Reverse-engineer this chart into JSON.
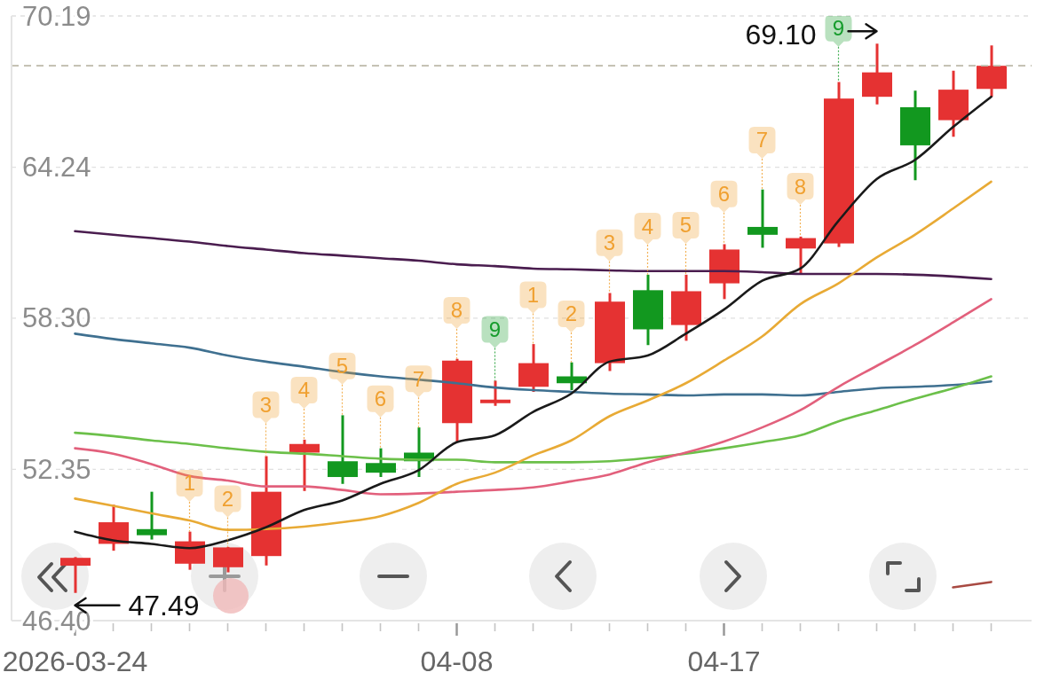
{
  "chart_data": {
    "type": "candlestick",
    "categories": [
      "2026-03-24",
      null,
      null,
      null,
      null,
      null,
      null,
      null,
      null,
      null,
      "04-08",
      null,
      null,
      null,
      null,
      null,
      null,
      "04-17",
      null,
      null,
      null,
      null,
      null,
      null,
      null
    ],
    "ohlc": [
      [
        48.56,
        48.9,
        47.49,
        48.87
      ],
      [
        49.42,
        50.96,
        49.15,
        50.27
      ],
      [
        50.0,
        51.47,
        49.59,
        49.76
      ],
      [
        48.64,
        49.9,
        48.4,
        49.52
      ],
      [
        48.5,
        49.3,
        48.3,
        49.28
      ],
      [
        48.94,
        52.87,
        48.57,
        51.47
      ],
      [
        53.01,
        53.52,
        51.5,
        53.35
      ],
      [
        52.67,
        54.48,
        51.78,
        52.05
      ],
      [
        52.6,
        53.18,
        52.05,
        52.22
      ],
      [
        53.01,
        54.0,
        52.05,
        52.67
      ],
      [
        54.17,
        56.7,
        53.42,
        56.63
      ],
      [
        55.0,
        55.84,
        54.85,
        55.05
      ],
      [
        55.6,
        57.28,
        55.4,
        56.53
      ],
      [
        56.01,
        56.56,
        55.47,
        55.74
      ],
      [
        56.53,
        59.29,
        56.22,
        58.95
      ],
      [
        59.4,
        60.01,
        57.24,
        57.86
      ],
      [
        58.03,
        60.01,
        57.41,
        59.36
      ],
      [
        59.67,
        61.21,
        59.05,
        61.0
      ],
      [
        61.89,
        63.36,
        61.07,
        61.58
      ],
      [
        61.04,
        61.51,
        60.01,
        61.45
      ],
      [
        61.24,
        67.59,
        61.1,
        66.94
      ],
      [
        67.01,
        69.1,
        66.71,
        67.97
      ],
      [
        66.6,
        67.25,
        63.73,
        65.1
      ],
      [
        66.09,
        68.04,
        65.44,
        67.29
      ],
      [
        67.32,
        69.03,
        67.01,
        68.23
      ]
    ],
    "colors": [
      "#e53232",
      "#e53232",
      "#12981f",
      "#e53232",
      "#e53232",
      "#e53232",
      "#e53232",
      "#12981f",
      "#12981f",
      "#12981f",
      "#e53232",
      "#e53232",
      "#e53232",
      "#12981f",
      "#e53232",
      "#12981f",
      "#e53232",
      "#e53232",
      "#12981f",
      "#e53232",
      "#e53232",
      "#e53232",
      "#12981f",
      "#e53232",
      "#e53232"
    ],
    "series": [
      {
        "type": "line",
        "color": "#4a1d4f",
        "values": [
          61.72,
          61.58,
          61.45,
          61.31,
          61.14,
          61.0,
          60.86,
          60.76,
          60.66,
          60.56,
          60.42,
          60.35,
          60.25,
          60.22,
          60.18,
          60.15,
          60.15,
          60.15,
          60.11,
          60.04,
          60.04,
          60.04,
          60.01,
          59.94,
          59.84
        ]
      },
      {
        "type": "line",
        "color": "#3f7090",
        "values": [
          57.69,
          57.48,
          57.31,
          57.14,
          56.83,
          56.59,
          56.39,
          56.18,
          56.01,
          55.88,
          55.74,
          55.57,
          55.47,
          55.4,
          55.33,
          55.3,
          55.26,
          55.3,
          55.3,
          55.26,
          55.4,
          55.54,
          55.6,
          55.67,
          55.81
        ]
      },
      {
        "type": "line",
        "color": "#6cc04a",
        "values": [
          53.79,
          53.66,
          53.49,
          53.35,
          53.18,
          53.04,
          52.97,
          52.87,
          52.77,
          52.73,
          52.73,
          52.63,
          52.63,
          52.63,
          52.67,
          52.8,
          52.97,
          53.18,
          53.42,
          53.69,
          54.24,
          54.68,
          55.13,
          55.54,
          56.01
        ]
      },
      {
        "type": "line",
        "color": "#e2607c",
        "values": [
          53.18,
          52.97,
          52.56,
          52.09,
          51.91,
          51.68,
          51.68,
          51.54,
          51.37,
          51.4,
          51.47,
          51.54,
          51.64,
          51.88,
          52.15,
          52.63,
          53.01,
          53.45,
          54.0,
          54.68,
          55.6,
          56.42,
          57.24,
          58.13,
          59.05
        ]
      },
      {
        "type": "line",
        "color": "#e8aa35",
        "values": [
          51.2,
          50.92,
          50.62,
          50.34,
          49.97,
          50.0,
          50.1,
          50.27,
          50.51,
          51.03,
          51.78,
          52.22,
          52.9,
          53.49,
          54.44,
          55.06,
          55.74,
          56.63,
          57.58,
          58.85,
          59.67,
          60.69,
          61.58,
          62.61,
          63.67
        ]
      },
      {
        "type": "line",
        "color": "#1a1a1a",
        "values": [
          49.9,
          49.56,
          49.42,
          49.25,
          49.56,
          50.07,
          50.75,
          51.13,
          51.78,
          52.32,
          53.42,
          53.69,
          54.61,
          55.33,
          56.59,
          56.83,
          57.69,
          58.64,
          59.77,
          60.25,
          62.13,
          63.77,
          64.52,
          65.82,
          67.01
        ]
      },
      {
        "type": "line",
        "color": "#a84a42",
        "values": [
          null,
          null,
          null,
          null,
          null,
          null,
          null,
          null,
          null,
          null,
          null,
          null,
          null,
          null,
          null,
          null,
          null,
          null,
          null,
          null,
          null,
          null,
          null,
          47.71,
          47.92
        ]
      },
      {
        "type": "scatter",
        "values": [
          null,
          null,
          null,
          51.81,
          51.2,
          54.89,
          55.47,
          56.42,
          55.13,
          55.91,
          58.61,
          57.86,
          59.22,
          58.47,
          61.27,
          61.92,
          61.96,
          63.19,
          65.31,
          63.49,
          69.71,
          null,
          null,
          null,
          null
        ],
        "colors": [
          null,
          null,
          null,
          "#f0a030",
          "#f0a030",
          "#f0a030",
          "#f0a030",
          "#f0a030",
          "#f0a030",
          "#f0a030",
          "#f0a030",
          "#169c2c",
          "#f0a030",
          "#f0a030",
          "#f0a030",
          "#f0a030",
          "#f0a030",
          "#f0a030",
          "#f0a030",
          "#f0a030",
          "#169c2c",
          null,
          null,
          null,
          null
        ]
      }
    ],
    "ylim": [
      46.4,
      70.19
    ],
    "yticks": [
      {
        "value": 46.4,
        "label": "46.40"
      },
      52.35,
      {
        "value": 58.3,
        "label": "58.30"
      },
      64.24,
      70.19
    ],
    "grid": "y",
    "ref_lines": [
      {
        "axis": "y",
        "value": 68.23,
        "color": "#bdb9a9",
        "line_style": "dashed"
      }
    ],
    "annotations": [
      {
        "text": "1",
        "y": 49.9
      },
      {
        "text": "2",
        "y": 49.3
      },
      {
        "text": "3",
        "y": 52.87
      },
      {
        "text": "4",
        "y": 53.52
      },
      {
        "text": "5",
        "y": 54.48
      },
      {
        "text": "6",
        "y": 53.18
      },
      {
        "text": "7",
        "y": 54.0
      },
      {
        "text": "8",
        "y": 56.7
      },
      {
        "text": "9",
        "y": 55.84
      },
      {
        "text": "1",
        "y": 57.28
      },
      {
        "text": "2",
        "y": 56.56
      },
      {
        "text": "3",
        "y": 59.29
      },
      {
        "text": "4",
        "y": 60.01
      },
      {
        "text": "5",
        "y": 60.01
      },
      {
        "text": "6",
        "y": 61.21
      },
      {
        "text": "7",
        "y": 63.36
      },
      {
        "text": "8",
        "y": 61.51
      },
      {
        "text": "9",
        "y": 67.59
      },
      "69.10",
      "47.49"
    ]
  }
}
